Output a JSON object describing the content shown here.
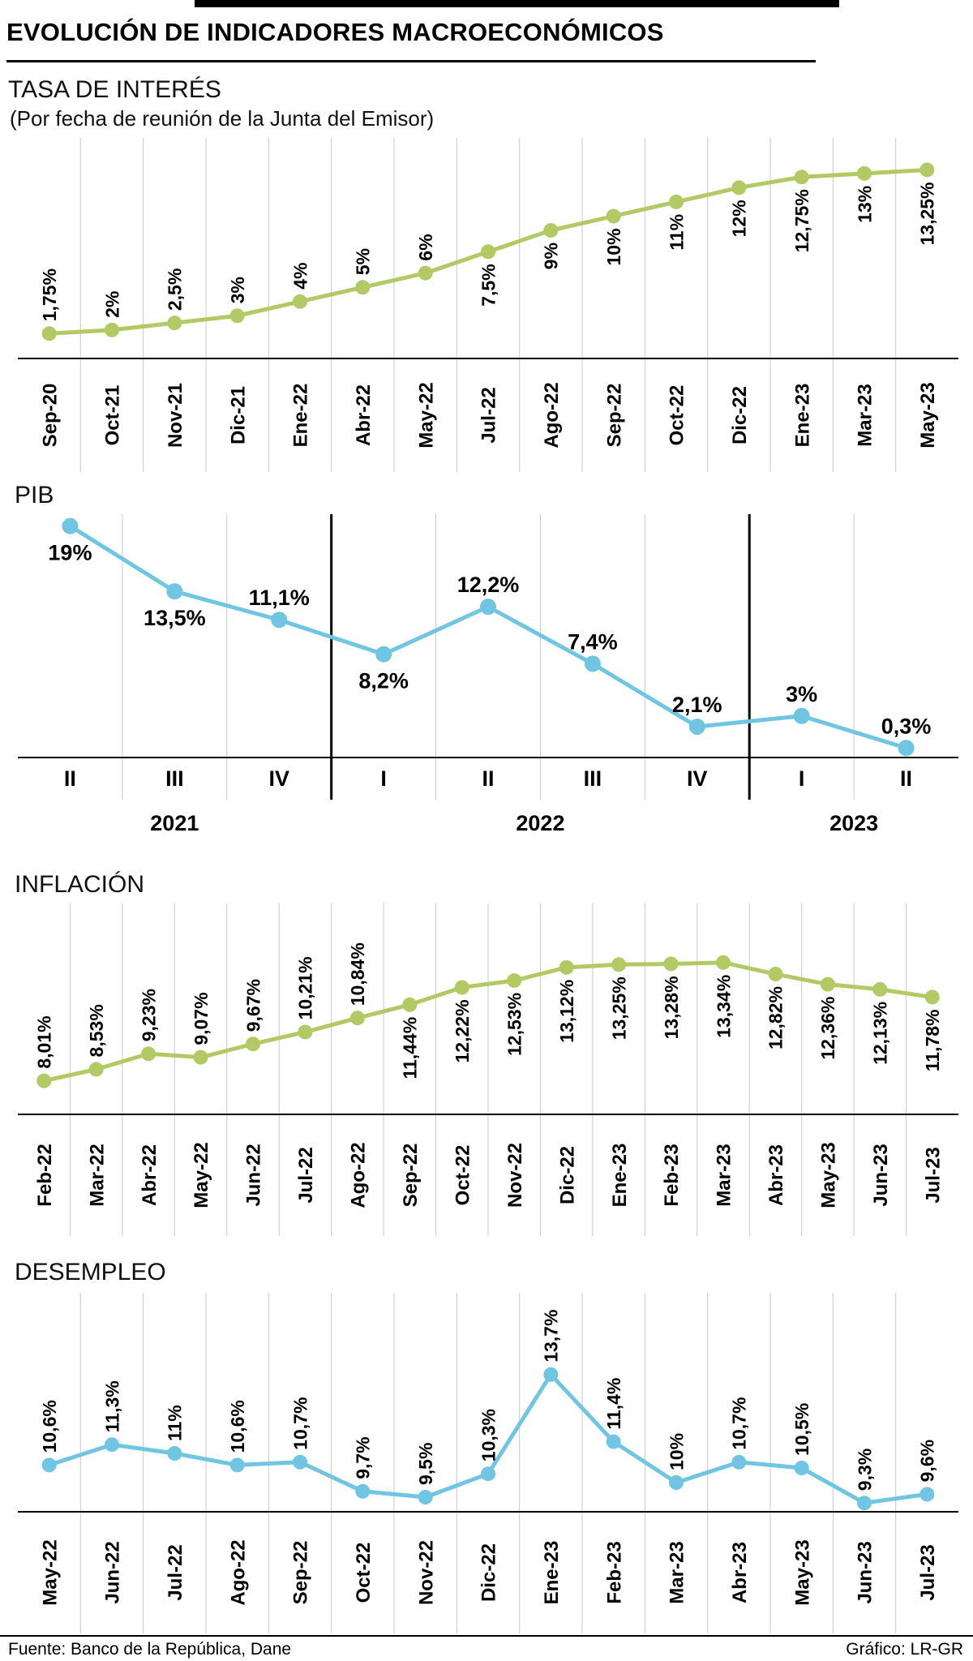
{
  "page": {
    "title": "EVOLUCIÓN DE INDICADORES MACROECONÓMICOS",
    "footer": {
      "source": "Fuente: Banco de la República, Dane",
      "credit": "Gráfico: LR-GR"
    }
  },
  "chart_data": [
    {
      "id": "tasa-de-interes",
      "type": "line",
      "title": "TASA DE INTERÉS",
      "subtitle": "(Por fecha de reunión de la Junta del Emisor)",
      "color": "#b2c964",
      "grid": true,
      "legend": "none",
      "categories": [
        "Sep-20",
        "Oct-21",
        "Nov-21",
        "Dic-21",
        "Ene-22",
        "Abr-22",
        "May-22",
        "Jul-22",
        "Ago-22",
        "Sep-22",
        "Oct-22",
        "Dic-22",
        "Ene-23",
        "Mar-23",
        "May-23"
      ],
      "values": [
        1.75,
        2,
        2.5,
        3,
        4,
        5,
        6,
        7.5,
        9,
        10,
        11,
        12,
        12.75,
        13,
        13.25
      ],
      "labels": [
        "1,75%",
        "2%",
        "2,5%",
        "3%",
        "4%",
        "5%",
        "6%",
        "7,5%",
        "9%",
        "10%",
        "11%",
        "12%",
        "12,75%",
        "13%",
        "13,25%"
      ],
      "label_sides": [
        "above",
        "above",
        "above",
        "above",
        "above",
        "above",
        "above",
        "below",
        "below",
        "below",
        "below",
        "below",
        "below",
        "below",
        "below"
      ],
      "label_rotated": true,
      "ylim": [
        0,
        15.5
      ]
    },
    {
      "id": "pib",
      "type": "line",
      "title": "PIB",
      "subtitle": "",
      "color": "#6fc5e2",
      "grid": true,
      "legend": "none",
      "categories": [
        "II",
        "III",
        "IV",
        "I",
        "II",
        "III",
        "IV",
        "I",
        "II"
      ],
      "year_groups": [
        {
          "label": "2021",
          "span": 3
        },
        {
          "label": "2022",
          "span": 4
        },
        {
          "label": "2023",
          "span": 2
        }
      ],
      "values": [
        19,
        13.5,
        11.1,
        8.2,
        12.2,
        7.4,
        2.1,
        3,
        0.3
      ],
      "labels": [
        "19%",
        "13,5%",
        "11,1%",
        "8,2%",
        "12,2%",
        "7,4%",
        "2,1%",
        "3%",
        "0,3%"
      ],
      "label_sides": [
        "below",
        "below",
        "above",
        "below",
        "above",
        "above",
        "above",
        "above",
        "above"
      ],
      "label_rotated": false,
      "ylim": [
        -0.5,
        20
      ]
    },
    {
      "id": "inflacion",
      "type": "line",
      "title": "INFLACIÓN",
      "subtitle": "",
      "color": "#b2c964",
      "grid": true,
      "legend": "none",
      "categories": [
        "Feb-22",
        "Mar-22",
        "Abr-22",
        "May-22",
        "Jun-22",
        "Jul-22",
        "Ago-22",
        "Sep-22",
        "Oct-22",
        "Nov-22",
        "Dic-22",
        "Ene-23",
        "Feb-23",
        "Mar-23",
        "Abr-23",
        "May-23",
        "Jun-23",
        "Jul-23"
      ],
      "values": [
        8.01,
        8.53,
        9.23,
        9.07,
        9.67,
        10.21,
        10.84,
        11.44,
        12.22,
        12.53,
        13.12,
        13.25,
        13.28,
        13.34,
        12.82,
        12.36,
        12.13,
        11.78
      ],
      "labels": [
        "8,01%",
        "8,53%",
        "9,23%",
        "9,07%",
        "9,67%",
        "10,21%",
        "10,84%",
        "11,44%",
        "12,22%",
        "12,53%",
        "13,12%",
        "13,25%",
        "13,28%",
        "13,34%",
        "12,82%",
        "12,36%",
        "12,13%",
        "11,78%"
      ],
      "label_sides": [
        "above",
        "above",
        "above",
        "above",
        "above",
        "above",
        "above",
        "below",
        "below",
        "below",
        "below",
        "below",
        "below",
        "below",
        "below",
        "below",
        "below",
        "below"
      ],
      "label_rotated": true,
      "ylim": [
        6.5,
        16
      ]
    },
    {
      "id": "desempleo",
      "type": "line",
      "title": "DESEMPLEO",
      "subtitle": "",
      "color": "#6fc5e2",
      "grid": true,
      "legend": "none",
      "categories": [
        "May-22",
        "Jun-22",
        "Jul-22",
        "Ago-22",
        "Sep-22",
        "Oct-22",
        "Nov-22",
        "Dic-22",
        "Ene-23",
        "Feb-23",
        "Mar-23",
        "Abr-23",
        "May-23",
        "Jun-23",
        "Jul-23"
      ],
      "values": [
        10.6,
        11.3,
        11,
        10.6,
        10.7,
        9.7,
        9.5,
        10.3,
        13.7,
        11.4,
        10,
        10.7,
        10.5,
        9.3,
        9.6
      ],
      "labels": [
        "10,6%",
        "11,3%",
        "11%",
        "10,6%",
        "10,7%",
        "9,7%",
        "9,5%",
        "10,3%",
        "13,7%",
        "11,4%",
        "10%",
        "10,7%",
        "10,5%",
        "9,3%",
        "9,6%"
      ],
      "label_sides": [
        "above",
        "above",
        "above",
        "above",
        "above",
        "above",
        "above",
        "above",
        "above",
        "above",
        "above",
        "above",
        "above",
        "above",
        "above"
      ],
      "label_rotated": true,
      "ylim": [
        9,
        16.5
      ]
    }
  ]
}
